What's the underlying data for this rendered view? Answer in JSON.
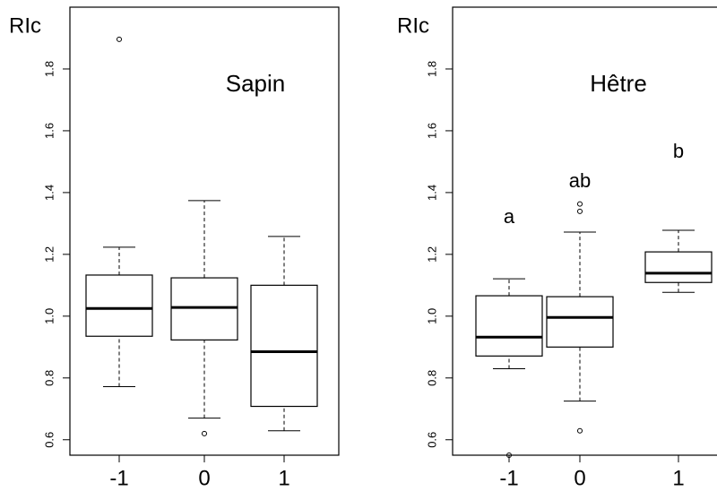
{
  "chart_data": [
    {
      "type": "boxplot",
      "title": "Sapin",
      "y_label": "RIc",
      "categories": [
        "-1",
        "0",
        "1"
      ],
      "boxes": [
        {
          "min": 0.772,
          "q1": 0.935,
          "median": 1.025,
          "q3": 1.133,
          "max": 1.223,
          "outliers": [
            1.896
          ]
        },
        {
          "min": 0.67,
          "q1": 0.923,
          "median": 1.028,
          "q3": 1.124,
          "max": 1.374,
          "outliers": [
            0.62
          ]
        },
        {
          "min": 0.629,
          "q1": 0.708,
          "median": 0.885,
          "q3": 1.1,
          "max": 1.258,
          "outliers": []
        }
      ],
      "ylim": [
        0.55,
        2.0
      ],
      "yticks": [
        0.6,
        0.8,
        {
          "value": 1.0,
          "label": "1.0"
        },
        1.2,
        1.4,
        1.6,
        1.8
      ]
    },
    {
      "type": "boxplot",
      "title": "Hêtre",
      "y_label": "RIc",
      "categories": [
        "-1",
        "0",
        "1"
      ],
      "annotations": [
        "a",
        "ab",
        "b"
      ],
      "boxes": [
        {
          "min": 0.83,
          "q1": 0.871,
          "median": 0.932,
          "q3": 1.066,
          "max": 1.121,
          "outliers": [
            0.55
          ]
        },
        {
          "min": 0.725,
          "q1": 0.9,
          "median": 0.996,
          "q3": 1.063,
          "max": 1.272,
          "outliers": [
            0.629,
            1.339,
            1.363
          ]
        },
        {
          "min": 1.077,
          "q1": 1.109,
          "median": 1.139,
          "q3": 1.208,
          "max": 1.278,
          "outliers": []
        }
      ],
      "ylim": [
        0.55,
        2.0
      ],
      "yticks": [
        0.6,
        0.8,
        {
          "value": 1.0,
          "label": "1.0"
        },
        1.2,
        1.4,
        1.6,
        1.8
      ]
    }
  ]
}
